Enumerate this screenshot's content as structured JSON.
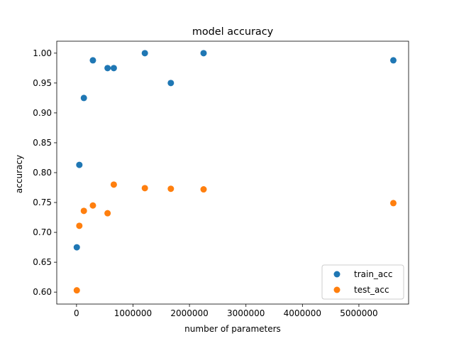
{
  "chart_data": {
    "type": "scatter",
    "title": "model accuracy",
    "xlabel": "number of parameters",
    "ylabel": "accuracy",
    "xlim": [
      -350000,
      5880000
    ],
    "ylim": [
      0.58,
      1.02
    ],
    "xticks": [
      0,
      1000000,
      2000000,
      3000000,
      4000000,
      5000000
    ],
    "xtick_labels": [
      "0",
      "1000000",
      "2000000",
      "3000000",
      "4000000",
      "5000000"
    ],
    "yticks": [
      0.6,
      0.65,
      0.7,
      0.75,
      0.8,
      0.85,
      0.9,
      0.95,
      1.0
    ],
    "ytick_labels": [
      "0.60",
      "0.65",
      "0.70",
      "0.75",
      "0.80",
      "0.85",
      "0.90",
      "0.95",
      "1.00"
    ],
    "grid": false,
    "legend_position": "lower-right",
    "series": [
      {
        "name": "train_acc",
        "color": "#1f77b4",
        "points": [
          {
            "x": 5000,
            "y": 0.675
          },
          {
            "x": 50000,
            "y": 0.813
          },
          {
            "x": 130000,
            "y": 0.925
          },
          {
            "x": 290000,
            "y": 0.988
          },
          {
            "x": 550000,
            "y": 0.975
          },
          {
            "x": 660000,
            "y": 0.975
          },
          {
            "x": 1210000,
            "y": 1.0
          },
          {
            "x": 1670000,
            "y": 0.95
          },
          {
            "x": 2250000,
            "y": 1.0
          },
          {
            "x": 5610000,
            "y": 0.988
          }
        ]
      },
      {
        "name": "test_acc",
        "color": "#ff7f0e",
        "points": [
          {
            "x": 5000,
            "y": 0.603
          },
          {
            "x": 50000,
            "y": 0.711
          },
          {
            "x": 130000,
            "y": 0.736
          },
          {
            "x": 290000,
            "y": 0.745
          },
          {
            "x": 550000,
            "y": 0.732
          },
          {
            "x": 660000,
            "y": 0.78
          },
          {
            "x": 1210000,
            "y": 0.774
          },
          {
            "x": 1670000,
            "y": 0.773
          },
          {
            "x": 2250000,
            "y": 0.772
          },
          {
            "x": 5610000,
            "y": 0.749
          }
        ]
      }
    ]
  }
}
